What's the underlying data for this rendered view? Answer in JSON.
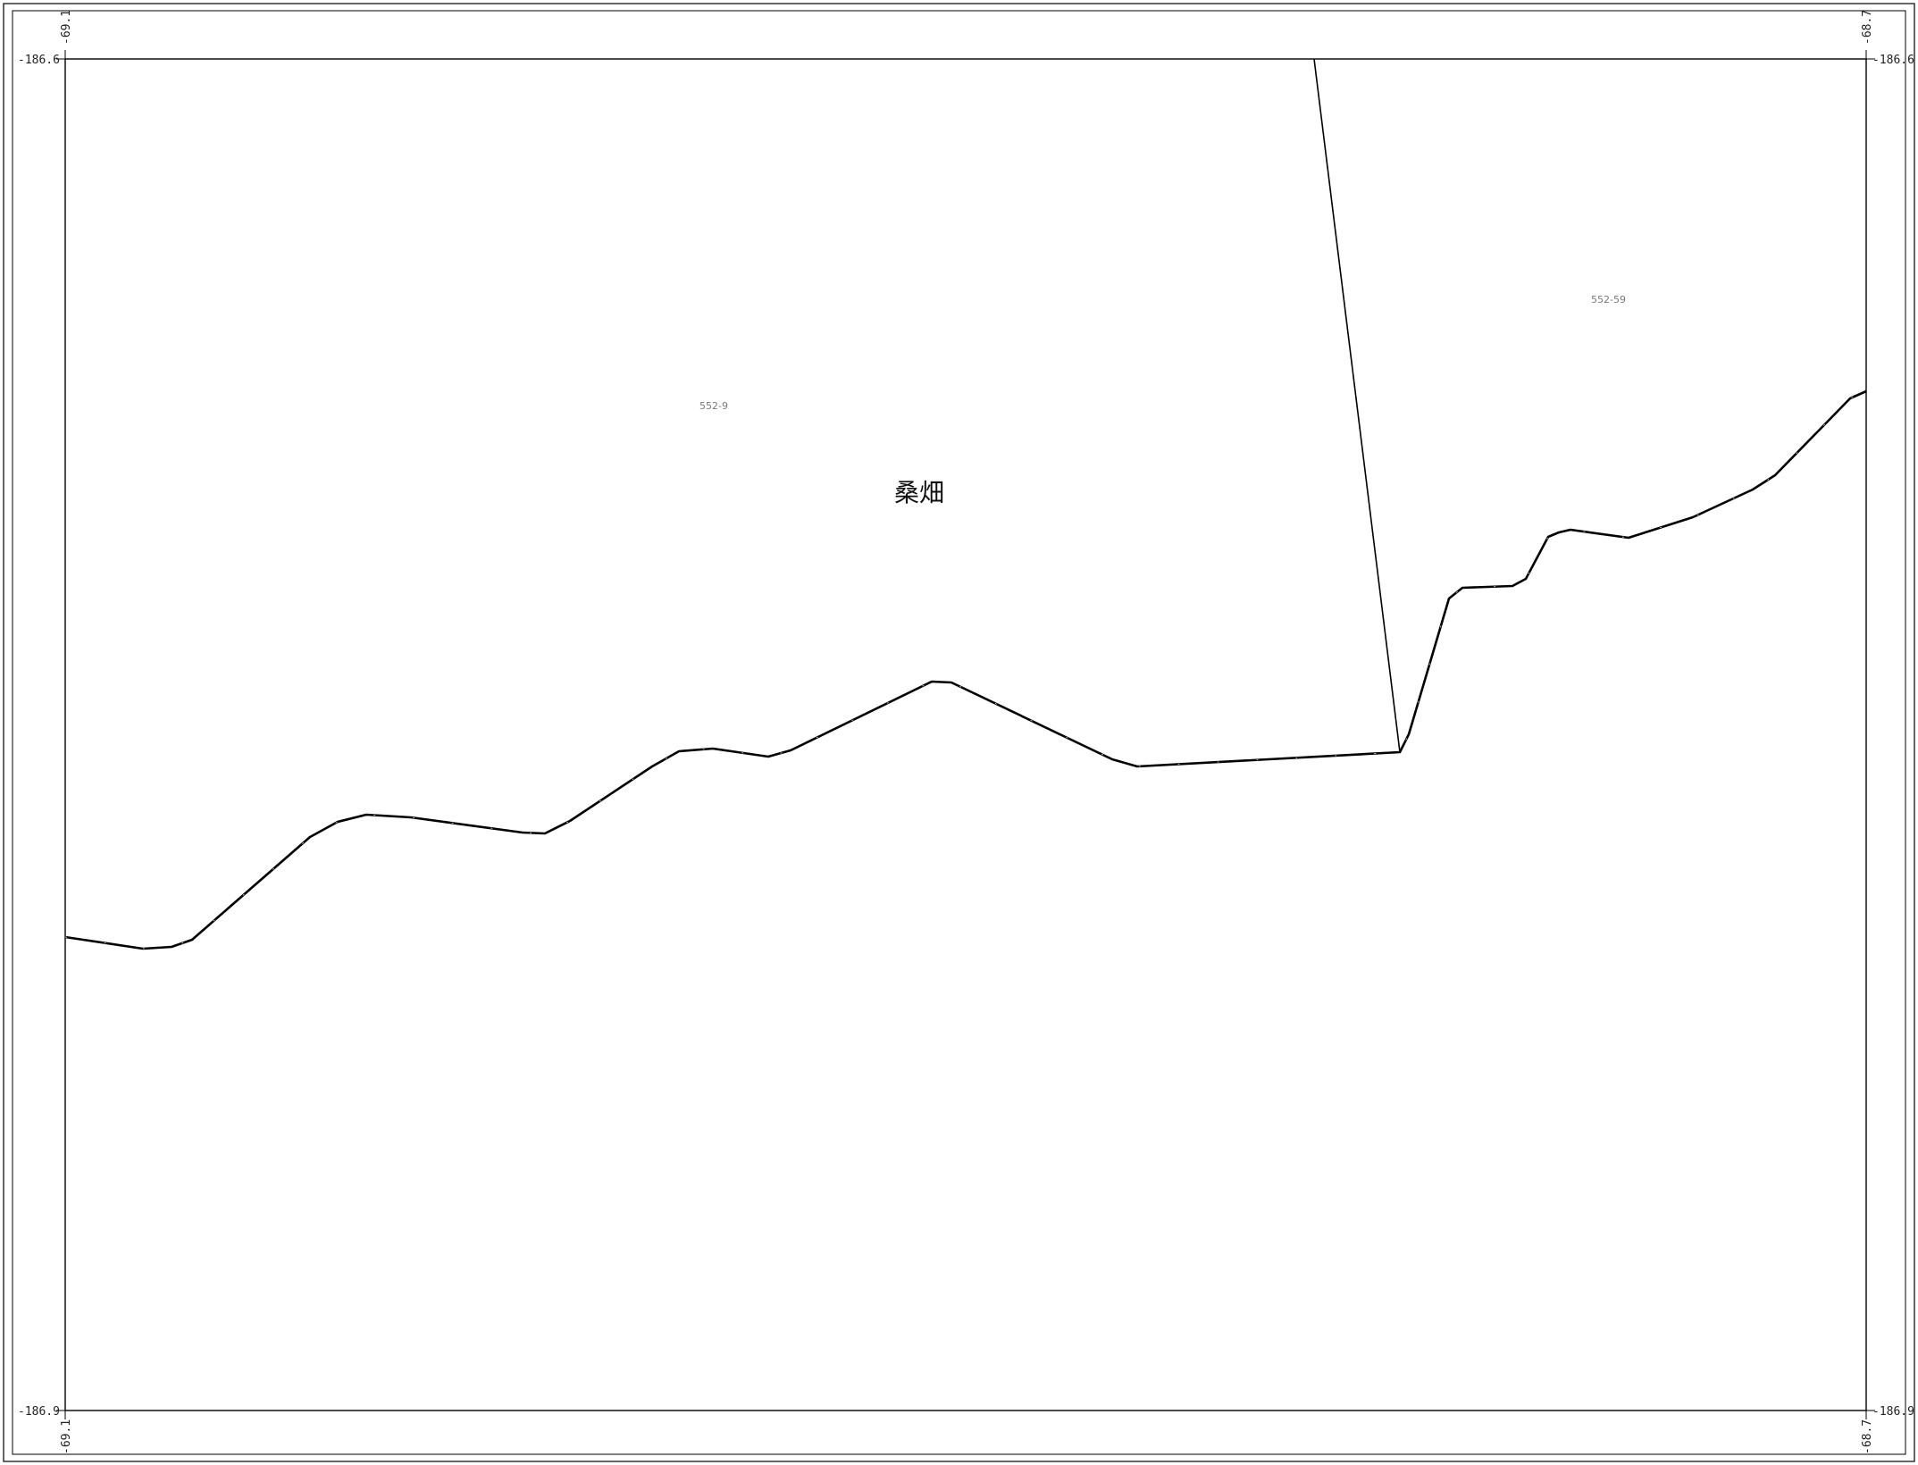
{
  "corner_labels": {
    "top_left_x": "-69.1",
    "top_right_x": "-68.7",
    "bottom_left_x": "-69.1",
    "bottom_right_x": "-68.7",
    "top_left_y": "-186.6",
    "top_right_y": "-186.6",
    "bottom_left_y": "-186.9",
    "bottom_right_y": "-186.9"
  },
  "parcels": [
    {
      "id_label": "552-9",
      "landuse_label": "桑畑"
    },
    {
      "id_label": "552-59"
    }
  ],
  "colors": {
    "line": "#000000",
    "parcel_id_text": "#7a7a7a",
    "background": "#ffffff"
  }
}
